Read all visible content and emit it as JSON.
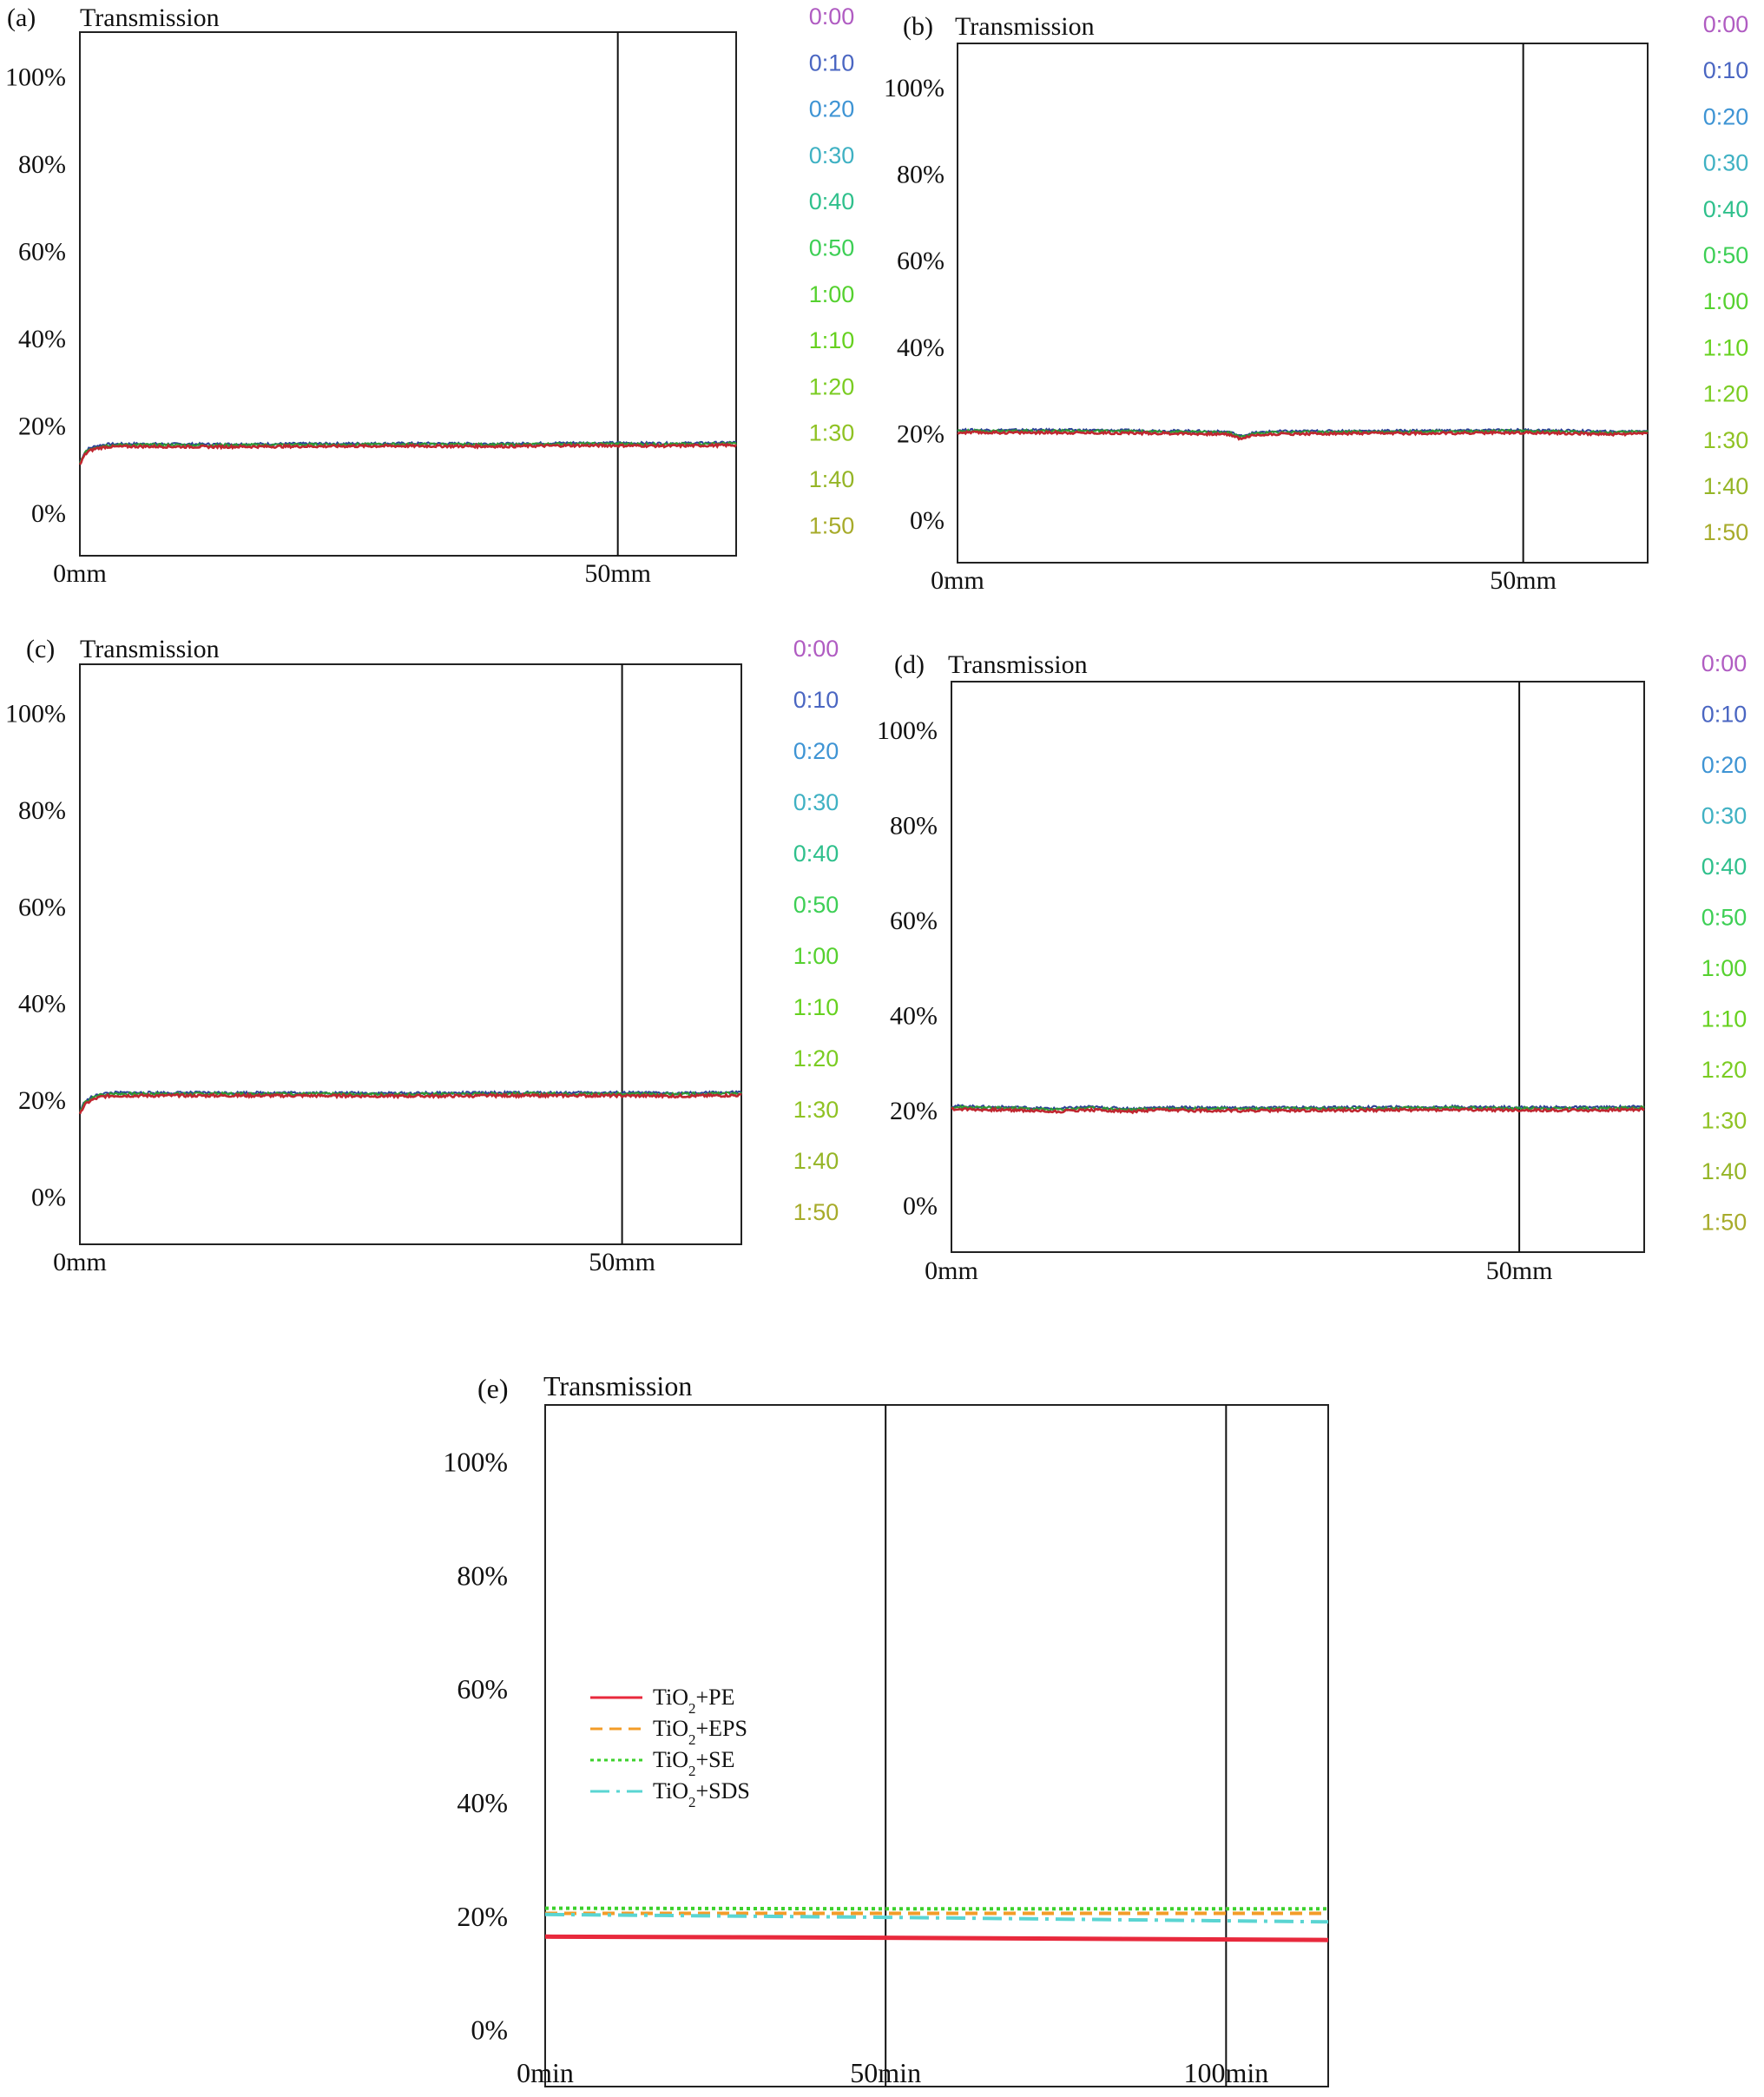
{
  "chart_data": [
    {
      "type": "line",
      "panel_label": "(a)",
      "title": "Transmission",
      "x_unit": "mm",
      "xlim": [
        0,
        61
      ],
      "x_ticks": [
        {
          "value": 0,
          "label": "0mm"
        },
        {
          "value": 50,
          "label": "50mm"
        }
      ],
      "ylim": [
        -10,
        110
      ],
      "y_ticks": [
        "0%",
        "20%",
        "40%",
        "60%",
        "80%",
        "100%"
      ],
      "vertical_lines": [
        50
      ],
      "grid": false,
      "legend": [
        "0:00",
        "0:10",
        "0:20",
        "0:30",
        "0:40",
        "0:50",
        "1:00",
        "1:10",
        "1:20",
        "1:30",
        "1:40",
        "1:50"
      ],
      "profile": [
        [
          0,
          11
        ],
        [
          0.4,
          13.2
        ],
        [
          0.8,
          14.2
        ],
        [
          1.5,
          14.8
        ],
        [
          2.5,
          15.2
        ],
        [
          5,
          15.3
        ],
        [
          12,
          15.2
        ],
        [
          20,
          15.3
        ],
        [
          30,
          15.4
        ],
        [
          40,
          15.3
        ],
        [
          45,
          15.5
        ],
        [
          50,
          15.5
        ],
        [
          55,
          15.4
        ],
        [
          61,
          15.6
        ]
      ]
    },
    {
      "type": "line",
      "panel_label": "(b)",
      "title": "Transmission",
      "x_unit": "mm",
      "xlim": [
        0,
        61
      ],
      "x_ticks": [
        {
          "value": 0,
          "label": "0mm"
        },
        {
          "value": 50,
          "label": "50mm"
        }
      ],
      "ylim": [
        -10,
        110
      ],
      "y_ticks": [
        "0%",
        "20%",
        "40%",
        "60%",
        "80%",
        "100%"
      ],
      "vertical_lines": [
        50
      ],
      "grid": false,
      "legend": [
        "0:00",
        "0:10",
        "0:20",
        "0:30",
        "0:40",
        "0:50",
        "1:00",
        "1:10",
        "1:20",
        "1:30",
        "1:40",
        "1:50"
      ],
      "profile": [
        [
          0,
          20.3
        ],
        [
          10,
          20.3
        ],
        [
          20,
          20.1
        ],
        [
          24,
          19.9
        ],
        [
          25,
          18.9
        ],
        [
          26,
          19.6
        ],
        [
          28,
          20
        ],
        [
          35,
          20.1
        ],
        [
          45,
          20.2
        ],
        [
          50,
          20.3
        ],
        [
          55,
          20.1
        ],
        [
          58,
          19.9
        ],
        [
          61,
          20.2
        ]
      ]
    },
    {
      "type": "line",
      "panel_label": "(c)",
      "title": "Transmission",
      "x_unit": "mm",
      "xlim": [
        0,
        61
      ],
      "x_ticks": [
        {
          "value": 0,
          "label": "0mm"
        },
        {
          "value": 50,
          "label": "50mm"
        }
      ],
      "ylim": [
        -10,
        110
      ],
      "y_ticks": [
        "0%",
        "20%",
        "40%",
        "60%",
        "80%",
        "100%"
      ],
      "vertical_lines": [
        50
      ],
      "grid": false,
      "legend": [
        "0:00",
        "0:10",
        "0:20",
        "0:30",
        "0:40",
        "0:50",
        "1:00",
        "1:10",
        "1:20",
        "1:30",
        "1:40",
        "1:50"
      ],
      "profile": [
        [
          0,
          17
        ],
        [
          0.4,
          19
        ],
        [
          1,
          20
        ],
        [
          2,
          20.8
        ],
        [
          3,
          21
        ],
        [
          10,
          21
        ],
        [
          20,
          21
        ],
        [
          30,
          20.9
        ],
        [
          40,
          21
        ],
        [
          50,
          21
        ],
        [
          55,
          20.9
        ],
        [
          61,
          21.1
        ]
      ]
    },
    {
      "type": "line",
      "panel_label": "(d)",
      "title": "Transmission",
      "x_unit": "mm",
      "xlim": [
        0,
        61
      ],
      "x_ticks": [
        {
          "value": 0,
          "label": "0mm"
        },
        {
          "value": 50,
          "label": "50mm"
        }
      ],
      "ylim": [
        -10,
        110
      ],
      "y_ticks": [
        "0%",
        "20%",
        "40%",
        "60%",
        "80%",
        "100%"
      ],
      "vertical_lines": [
        50
      ],
      "grid": false,
      "legend": [
        "0:00",
        "0:10",
        "0:20",
        "0:30",
        "0:40",
        "0:50",
        "1:00",
        "1:10",
        "1:20",
        "1:30",
        "1:40",
        "1:50"
      ],
      "profile": [
        [
          0,
          20.4
        ],
        [
          3,
          20.2
        ],
        [
          6,
          20.1
        ],
        [
          9,
          19.8
        ],
        [
          12,
          20.2
        ],
        [
          16,
          19.8
        ],
        [
          18,
          20.1
        ],
        [
          25,
          20
        ],
        [
          35,
          20.1
        ],
        [
          45,
          20.2
        ],
        [
          50,
          20.1
        ],
        [
          58,
          20.1
        ],
        [
          61,
          20.3
        ]
      ]
    },
    {
      "type": "line",
      "panel_label": "(e)",
      "title": "Transmission",
      "x_unit": "min",
      "xlim": [
        0,
        115
      ],
      "x_ticks": [
        {
          "value": 0,
          "label": "0min"
        },
        {
          "value": 50,
          "label": "50min"
        },
        {
          "value": 100,
          "label": "100min"
        }
      ],
      "ylim": [
        -10,
        110
      ],
      "y_ticks": [
        "0%",
        "20%",
        "40%",
        "60%",
        "80%",
        "100%"
      ],
      "vertical_lines": [
        50,
        100
      ],
      "grid": false,
      "series": [
        {
          "name": "TiO2+PE",
          "style": "solid",
          "x": [
            0,
            50,
            115
          ],
          "y": [
            16.4,
            16.2,
            15.8
          ]
        },
        {
          "name": "TiO2+EPS",
          "style": "dashed",
          "x": [
            0,
            50,
            115
          ],
          "y": [
            20.5,
            20.5,
            20.5
          ]
        },
        {
          "name": "TiO2+SE",
          "style": "dotted",
          "x": [
            0,
            50,
            115
          ],
          "y": [
            21.4,
            21.3,
            21.3
          ]
        },
        {
          "name": "TiO2+SDS",
          "style": "dash-dot",
          "x": [
            0,
            50,
            115
          ],
          "y": [
            20.3,
            19.8,
            19.0
          ]
        }
      ]
    }
  ],
  "time_legend_colors": [
    "#b05cc2",
    "#4a66c2",
    "#3e94d4",
    "#3fb1c3",
    "#2fc08c",
    "#3dcf55",
    "#55d12f",
    "#66d11f",
    "#7acc22",
    "#8fc223",
    "#95b526",
    "#a7ab2a"
  ],
  "panel_e_series_colors": [
    "#e8293c",
    "#f39c28",
    "#3cd12c",
    "#5ad5d2"
  ],
  "profile_curve_colors": [
    "#c0262f",
    "#2d9a33",
    "#2a3f96"
  ],
  "panel_e_legend_subscript": "2"
}
